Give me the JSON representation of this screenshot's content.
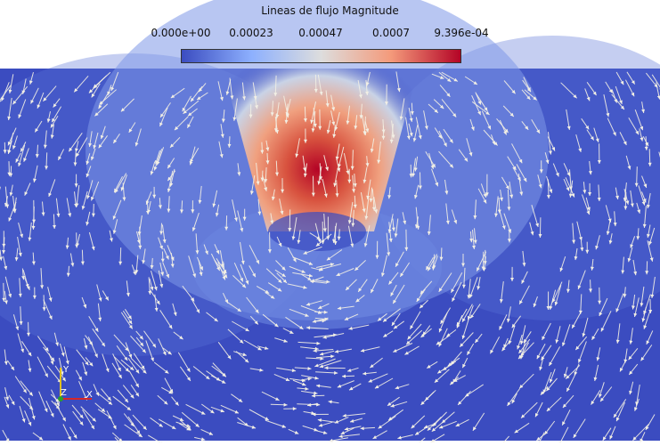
{
  "legend": {
    "title": "Lineas de flujo Magnitude",
    "ticks": [
      "0.000e+00",
      "0.00023",
      "0.00047",
      "0.0007",
      "9.396e-04"
    ],
    "colormap": [
      "#3b4cc0",
      "#8db0fe",
      "#dddddd",
      "#f49a7b",
      "#b40426"
    ]
  },
  "axes": {
    "x": "X",
    "y": "Y",
    "z": "Z"
  },
  "colors": {
    "field_background": "#3b4cc0",
    "glyph": "#f2efe4",
    "x_axis": "#d62728",
    "y_axis": "#e0c020",
    "z_axis": "#2ca02c"
  }
}
